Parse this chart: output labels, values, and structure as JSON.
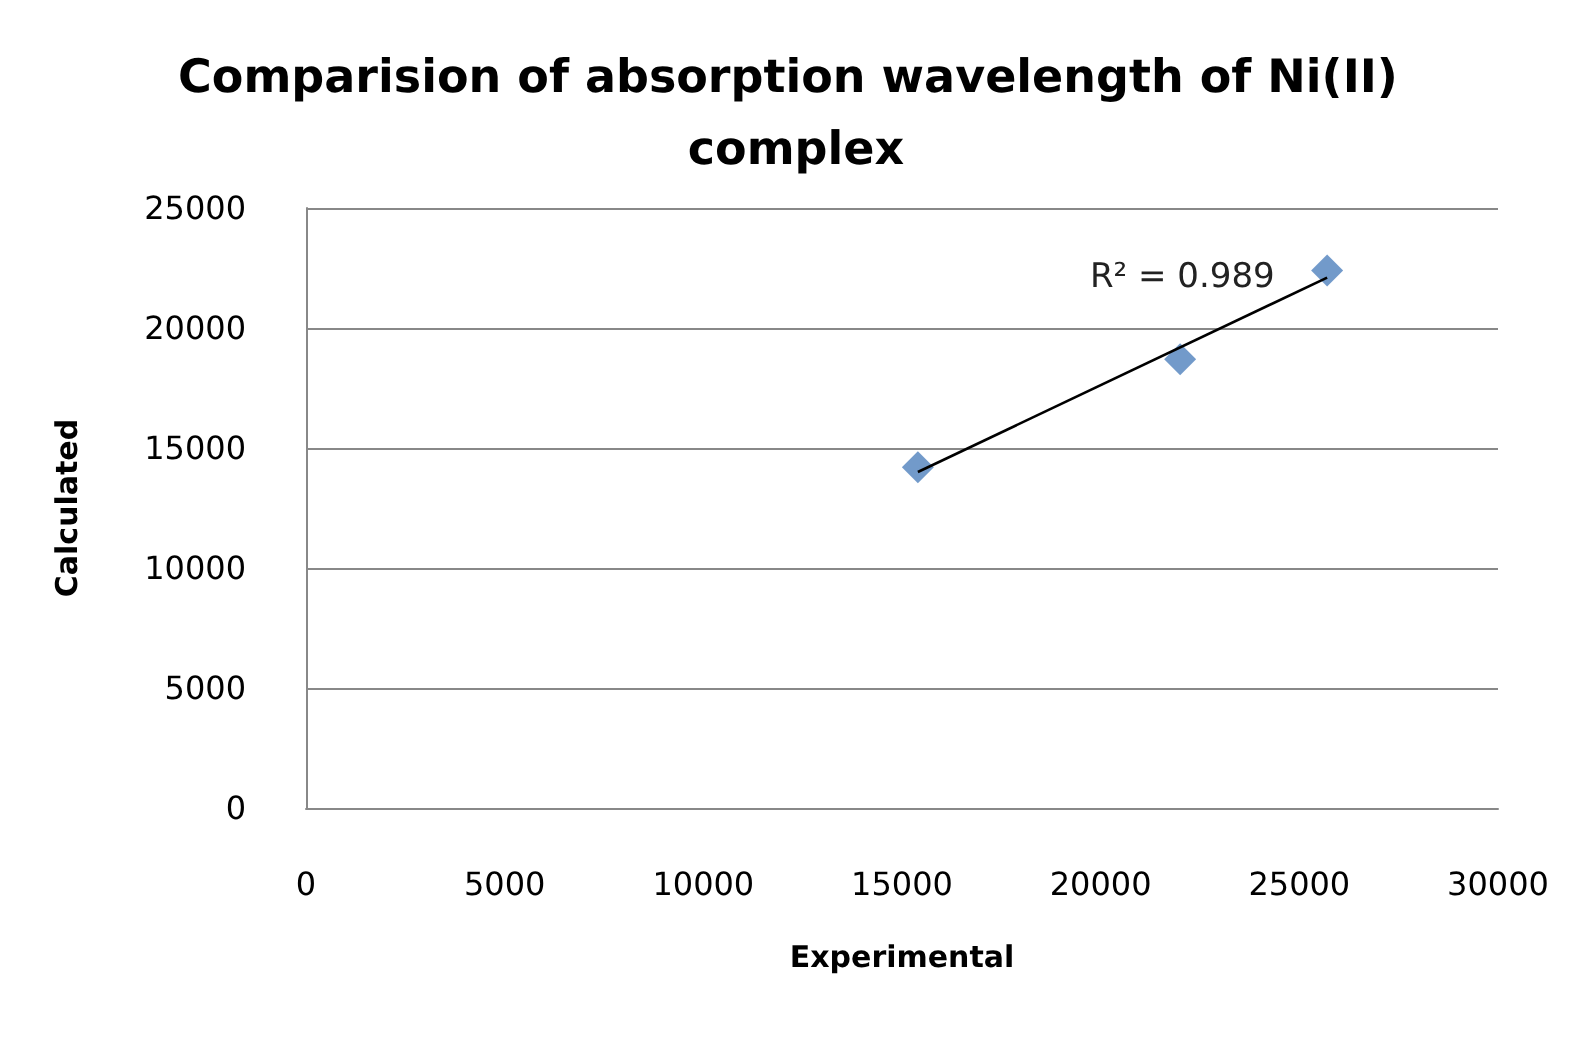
{
  "chart_data": {
    "type": "scatter",
    "title": "Comparision of absorption wavelength of Ni(II) complex",
    "xlabel": "Experimental",
    "ylabel": "Calculated",
    "x": [
      15400,
      22000,
      25700
    ],
    "series": [
      {
        "color": "#4f81bd",
        "values": [
          14200,
          18700,
          22400
        ]
      },
      {
        "type": "line",
        "color": "#000000",
        "x": [
          15400,
          25700
        ],
        "values": [
          14000,
          22100
        ],
        "marker": "none"
      }
    ],
    "annotations": [
      "R² = 0.989"
    ],
    "xlim": [
      0,
      30000
    ],
    "xticks": [
      0,
      5000,
      10000,
      15000,
      20000,
      25000,
      30000
    ],
    "ylim": [
      0,
      25000
    ],
    "yticks": [
      0,
      5000,
      10000,
      15000,
      20000,
      25000
    ],
    "grid": "y",
    "marker": "diamond"
  }
}
